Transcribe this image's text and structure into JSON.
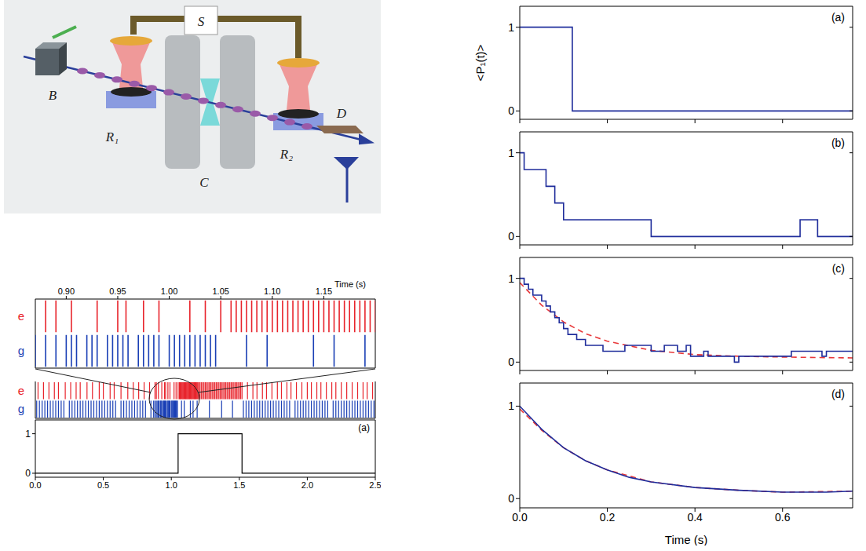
{
  "diagram": {
    "labels": [
      "B",
      "R₁",
      "S",
      "C",
      "R₂",
      "D"
    ]
  },
  "chart_data": [
    {
      "type": "scatter",
      "xlim": [
        0.87,
        1.2
      ],
      "xticks": [
        {
          "value": 0.9,
          "label": "0.90"
        },
        0.95,
        {
          "value": 1,
          "label": "1.00"
        },
        1.05,
        {
          "value": 1.1,
          "label": "1.10"
        },
        1.15
      ],
      "x_label": "Time (s)"
    },
    {
      "type": "line",
      "title": "(a)",
      "xlim": [
        0,
        2.5
      ],
      "xticks": [
        {
          "value": 0,
          "label": "0.0"
        },
        0.5,
        {
          "value": 1,
          "label": "1.0"
        },
        1.5,
        {
          "value": 2,
          "label": "2.0"
        },
        2.5
      ],
      "ylim": [
        -0.1,
        1.35
      ],
      "yticks": [
        0,
        1
      ],
      "x": [
        0,
        1.05,
        1.52,
        2.5
      ],
      "values": [
        0,
        1,
        0,
        0
      ],
      "color": "#000000",
      "line_style": "step",
      "events": [
        {
          "name": "e",
          "color": "#e8242c",
          "times": [
            0.02,
            0.06,
            0.1,
            0.14,
            0.17,
            0.22,
            0.26,
            0.3,
            0.33,
            0.38,
            0.42,
            0.47,
            0.5,
            0.55,
            0.58,
            0.63,
            0.68,
            0.72,
            0.76,
            0.8,
            0.84,
            0.88,
            0.89,
            0.905,
            0.93,
            0.95,
            0.958,
            0.975,
            0.99,
            1.02,
            1.035,
            1.05,
            1.06,
            1.065,
            1.07,
            1.075,
            1.08,
            1.085,
            1.09,
            1.095,
            1.1,
            1.105,
            1.11,
            1.115,
            1.12,
            1.125,
            1.13,
            1.135,
            1.14,
            1.145,
            1.15,
            1.155,
            1.16,
            1.165,
            1.17,
            1.175,
            1.18,
            1.185,
            1.19,
            1.195,
            1.2,
            1.21,
            1.22,
            1.23,
            1.24,
            1.25,
            1.26,
            1.27,
            1.28,
            1.29,
            1.3,
            1.31,
            1.32,
            1.33,
            1.34,
            1.35,
            1.36,
            1.37,
            1.38,
            1.39,
            1.4,
            1.41,
            1.42,
            1.43,
            1.44,
            1.45,
            1.46,
            1.47,
            1.48,
            1.49,
            1.5,
            1.51,
            1.52,
            1.56,
            1.6,
            1.63,
            1.67,
            1.7,
            1.74,
            1.78,
            1.81,
            1.85,
            1.88,
            1.92,
            1.96,
            2.0,
            2.03,
            2.07,
            2.1,
            2.14,
            2.18,
            2.21,
            2.25,
            2.29,
            2.33,
            2.37,
            2.41,
            2.44,
            2.48
          ]
        },
        {
          "name": "g",
          "color": "#1a3fb5",
          "times": [
            0.01,
            0.03,
            0.05,
            0.07,
            0.09,
            0.11,
            0.13,
            0.15,
            0.17,
            0.19,
            0.21,
            0.25,
            0.27,
            0.29,
            0.31,
            0.33,
            0.35,
            0.37,
            0.39,
            0.41,
            0.43,
            0.45,
            0.47,
            0.49,
            0.51,
            0.53,
            0.55,
            0.57,
            0.59,
            0.63,
            0.65,
            0.67,
            0.69,
            0.71,
            0.73,
            0.75,
            0.77,
            0.79,
            0.81,
            0.85,
            0.87,
            0.88,
            0.89,
            0.9,
            0.905,
            0.91,
            0.92,
            0.925,
            0.93,
            0.94,
            0.945,
            0.95,
            0.955,
            0.96,
            0.97,
            0.975,
            0.98,
            0.985,
            0.99,
            1.0,
            1.005,
            1.01,
            1.015,
            1.02,
            1.025,
            1.03,
            1.035,
            1.04,
            1.045,
            1.075,
            1.095,
            1.14,
            1.16,
            1.19,
            1.28,
            1.37,
            1.45,
            1.53,
            1.55,
            1.57,
            1.59,
            1.61,
            1.63,
            1.65,
            1.67,
            1.69,
            1.71,
            1.73,
            1.75,
            1.77,
            1.79,
            1.81,
            1.83,
            1.85,
            1.87,
            1.91,
            1.93,
            1.95,
            1.97,
            1.99,
            2.01,
            2.03,
            2.05,
            2.07,
            2.09,
            2.11,
            2.13,
            2.15,
            2.19,
            2.21,
            2.23,
            2.25,
            2.27,
            2.29,
            2.31,
            2.33,
            2.35,
            2.37,
            2.39,
            2.41,
            2.43,
            2.45,
            2.47,
            2.49
          ]
        }
      ]
    },
    {
      "type": "line",
      "title": "(a)",
      "y_label": "<P₁(t)>",
      "xlim": [
        0,
        0.76
      ],
      "xticks": [
        {
          "value": 0,
          "label": "0.0"
        },
        0.2,
        0.4,
        0.6
      ],
      "ylim": [
        -0.1,
        1.25
      ],
      "yticks": [
        0,
        1
      ],
      "tick_labels": "y",
      "series": [
        {
          "color": "#1f2d9b",
          "line_style": "step",
          "x": [
            0,
            0.12,
            0.76
          ],
          "values": [
            1,
            0,
            0
          ]
        }
      ]
    },
    {
      "type": "line",
      "title": "(b)",
      "xlim": [
        0,
        0.76
      ],
      "xticks": [
        {
          "value": 0,
          "label": "0.0"
        },
        0.2,
        0.4,
        0.6
      ],
      "ylim": [
        -0.1,
        1.25
      ],
      "yticks": [
        0,
        1
      ],
      "tick_labels": "y",
      "series": [
        {
          "color": "#1f2d9b",
          "line_style": "step",
          "x": [
            0,
            0.01,
            0.06,
            0.08,
            0.1,
            0.3,
            0.64,
            0.68,
            0.76
          ],
          "values": [
            1,
            0.8,
            0.6,
            0.4,
            0.2,
            0,
            0.2,
            0,
            0
          ]
        }
      ]
    },
    {
      "type": "line",
      "title": "(c)",
      "xlim": [
        0,
        0.76
      ],
      "xticks": [
        {
          "value": 0,
          "label": "0.0"
        },
        0.2,
        0.4,
        0.6
      ],
      "ylim": [
        -0.1,
        1.25
      ],
      "yticks": [
        0,
        1
      ],
      "tick_labels": "y",
      "series": [
        {
          "color": "#e8383a",
          "line_style": "dashed",
          "x": [
            0,
            0.05,
            0.1,
            0.15,
            0.2,
            0.3,
            0.4,
            0.5,
            0.6,
            0.76
          ],
          "values": [
            0.95,
            0.68,
            0.48,
            0.34,
            0.25,
            0.14,
            0.09,
            0.07,
            0.06,
            0.05
          ]
        },
        {
          "color": "#1f2d9b",
          "line_style": "step",
          "x": [
            0,
            0.01,
            0.02,
            0.03,
            0.05,
            0.06,
            0.07,
            0.08,
            0.09,
            0.1,
            0.11,
            0.13,
            0.15,
            0.19,
            0.24,
            0.3,
            0.33,
            0.36,
            0.38,
            0.39,
            0.42,
            0.43,
            0.49,
            0.5,
            0.57,
            0.62,
            0.69,
            0.7,
            0.76
          ],
          "values": [
            1,
            0.93,
            0.87,
            0.8,
            0.73,
            0.67,
            0.6,
            0.53,
            0.47,
            0.4,
            0.33,
            0.27,
            0.2,
            0.13,
            0.2,
            0.13,
            0.2,
            0.13,
            0.2,
            0.07,
            0.13,
            0.07,
            0,
            0.07,
            0.07,
            0.13,
            0.07,
            0.13,
            0.13
          ]
        }
      ]
    },
    {
      "type": "line",
      "title": "(d)",
      "x_label": "Time (s)",
      "xlim": [
        0,
        0.76
      ],
      "xticks": [
        {
          "value": 0,
          "label": "0.0"
        },
        0.2,
        0.4,
        0.6
      ],
      "ylim": [
        -0.1,
        1.25
      ],
      "yticks": [
        0,
        1
      ],
      "series": [
        {
          "color": "#e8383a",
          "line_style": "dashed",
          "x": [
            0,
            0.05,
            0.1,
            0.15,
            0.2,
            0.3,
            0.4,
            0.5,
            0.6,
            0.76
          ],
          "values": [
            0.97,
            0.74,
            0.55,
            0.41,
            0.31,
            0.18,
            0.12,
            0.09,
            0.07,
            0.08
          ]
        },
        {
          "color": "#1f2d9b",
          "line_style": "solid",
          "x": [
            0,
            0.02,
            0.05,
            0.1,
            0.15,
            0.2,
            0.25,
            0.3,
            0.4,
            0.5,
            0.6,
            0.7,
            0.76
          ],
          "values": [
            1,
            0.9,
            0.75,
            0.55,
            0.41,
            0.31,
            0.23,
            0.18,
            0.12,
            0.09,
            0.07,
            0.07,
            0.08
          ]
        }
      ]
    }
  ]
}
